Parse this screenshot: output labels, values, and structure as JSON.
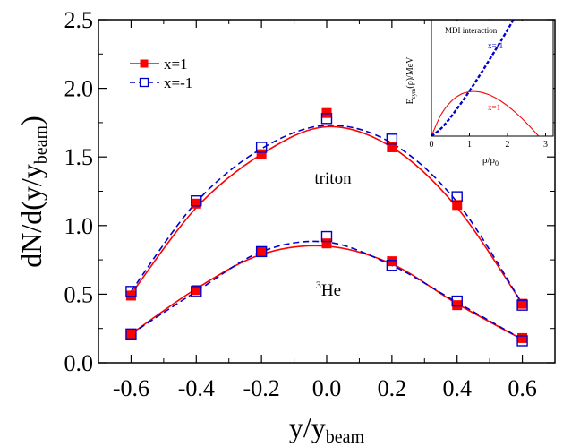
{
  "chart_data": [
    {
      "type": "line",
      "xlabel_main": "y/y",
      "xlabel_sub": "beam",
      "ylabel_main": "dN/d(y/y",
      "ylabel_sub": "beam",
      "ylabel_close": ")",
      "xlim": [
        -0.7,
        0.7
      ],
      "ylim": [
        0.0,
        2.5
      ],
      "xticks": [
        -0.6,
        -0.4,
        -0.2,
        0.0,
        0.2,
        0.4,
        0.6
      ],
      "xtick_labels": [
        "-0.6",
        "-0.4",
        "-0.2",
        "0.0",
        "0.2",
        "0.4",
        "0.6"
      ],
      "yticks": [
        0.0,
        0.5,
        1.0,
        1.5,
        2.0,
        2.5
      ],
      "ytick_labels": [
        "0.0",
        "0.5",
        "1.0",
        "1.5",
        "2.0",
        "2.5"
      ],
      "legend": {
        "position": "top-left",
        "entries": [
          "x=1",
          "x=-1"
        ]
      },
      "annotations": {
        "triton": "triton",
        "he3_sup": "3",
        "he3": "He"
      },
      "colors": {
        "x1": "#ff0000",
        "xm1": "#0000cc"
      },
      "series": [
        {
          "name": "x=1",
          "group": "triton",
          "marker": "filled-square",
          "line": "solid",
          "x": [
            -0.6,
            -0.4,
            -0.2,
            0.0,
            0.2,
            0.4,
            0.6
          ],
          "points": [
            0.49,
            1.16,
            1.52,
            1.82,
            1.57,
            1.15,
            0.43
          ],
          "curve": [
            0.5,
            1.13,
            1.52,
            1.72,
            1.57,
            1.13,
            0.43
          ]
        },
        {
          "name": "x=-1",
          "group": "triton",
          "marker": "open-square",
          "line": "dashed",
          "x": [
            -0.6,
            -0.4,
            -0.2,
            0.0,
            0.2,
            0.4,
            0.6
          ],
          "points": [
            0.52,
            1.18,
            1.57,
            1.78,
            1.63,
            1.21,
            0.42
          ],
          "curve": [
            0.52,
            1.17,
            1.56,
            1.73,
            1.6,
            1.17,
            0.43
          ]
        },
        {
          "name": "x=1",
          "group": "3He",
          "marker": "filled-square",
          "line": "solid",
          "x": [
            -0.6,
            -0.4,
            -0.2,
            0.0,
            0.2,
            0.4,
            0.6
          ],
          "points": [
            0.21,
            0.53,
            0.81,
            0.87,
            0.74,
            0.42,
            0.18
          ],
          "curve": [
            0.21,
            0.54,
            0.79,
            0.85,
            0.72,
            0.43,
            0.17
          ]
        },
        {
          "name": "x=-1",
          "group": "3He",
          "marker": "open-square",
          "line": "dashed",
          "x": [
            -0.6,
            -0.4,
            -0.2,
            0.0,
            0.2,
            0.4,
            0.6
          ],
          "points": [
            0.21,
            0.52,
            0.81,
            0.92,
            0.71,
            0.45,
            0.16
          ],
          "curve": [
            0.21,
            0.52,
            0.81,
            0.88,
            0.71,
            0.44,
            0.17
          ]
        }
      ]
    },
    {
      "type": "line",
      "title": "MDI interaction",
      "xlabel_main": "ρ/ρ",
      "xlabel_sub": "0",
      "ylabel_main": "E",
      "ylabel_sub": "sym",
      "ylabel_rest": "(ρ)/MeV",
      "xlim": [
        0,
        3.2
      ],
      "ylim": [
        0,
        80
      ],
      "xticks": [
        0,
        1,
        2,
        3
      ],
      "xtick_labels": [
        "0",
        "1",
        "2",
        "3"
      ],
      "series": [
        {
          "name": "x=1",
          "label": "x=1",
          "color": "#ff0000",
          "line": "solid",
          "x": [
            0,
            0.25,
            0.5,
            0.75,
            1.0,
            1.25,
            1.5,
            1.75,
            2.0,
            2.25,
            2.5,
            2.75,
            3.0
          ],
          "y": [
            0,
            14.6,
            23.4,
            28.4,
            30.5,
            30.4,
            28.6,
            25.3,
            20.8,
            15.3,
            9.0,
            2.0,
            -5.7
          ]
        },
        {
          "name": "x=-1",
          "label": "x=-1",
          "color": "#0000cc",
          "line": "dashed",
          "x": [
            0,
            0.25,
            0.5,
            0.75,
            1.0,
            1.25,
            1.5,
            1.75,
            2.0,
            2.2
          ],
          "y": [
            0,
            5.2,
            12.8,
            21.6,
            31.0,
            41.0,
            51.4,
            62.1,
            73.0,
            82.0
          ]
        }
      ]
    }
  ]
}
